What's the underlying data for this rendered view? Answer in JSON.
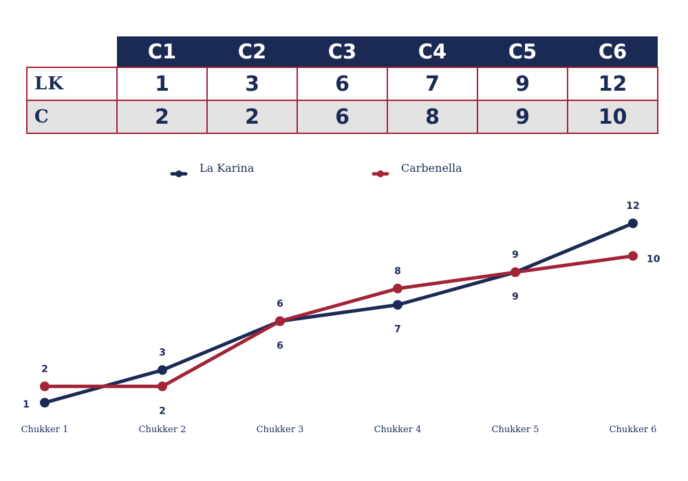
{
  "table": {
    "columns": [
      "C1",
      "C2",
      "C3",
      "C4",
      "C5",
      "C6"
    ],
    "rows": [
      {
        "team": "LK",
        "values": [
          "1",
          "3",
          "6",
          "7",
          "9",
          "12"
        ]
      },
      {
        "team": "C",
        "values": [
          "2",
          "2",
          "6",
          "8",
          "9",
          "10"
        ]
      }
    ]
  },
  "colors": {
    "navy": "#1b2a55",
    "crimson": "#a32337"
  },
  "chart_data": {
    "type": "line",
    "categories": [
      "Chukker 1",
      "Chukker 2",
      "Chukker 3",
      "Chukker 4",
      "Chukker 5",
      "Chukker 6"
    ],
    "series": [
      {
        "name": "La Karina",
        "color": "#1b2a55",
        "values": [
          1,
          3,
          6,
          7,
          9,
          12
        ]
      },
      {
        "name": "Carbenella",
        "color": "#a32337",
        "values": [
          2,
          2,
          6,
          8,
          9,
          10
        ]
      }
    ],
    "ylim": [
      1,
      12
    ],
    "grid": false,
    "legend": "top"
  }
}
